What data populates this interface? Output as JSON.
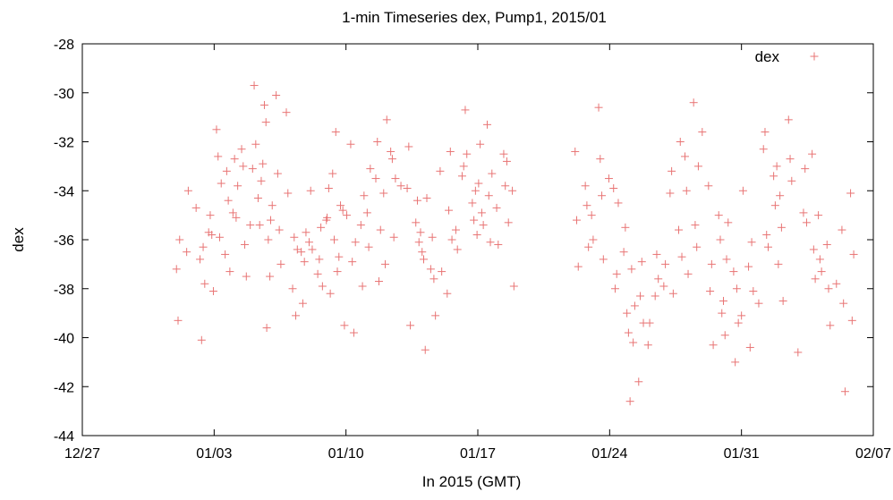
{
  "chart_data": {
    "type": "scatter",
    "title": "1-min Timeseries dex, Pump1, 2015/01",
    "xlabel": "In 2015 (GMT)",
    "ylabel": "dex",
    "xlim": [
      "2014-12-27",
      "2015-02-07"
    ],
    "ylim": [
      -44,
      -28
    ],
    "x_ticks": [
      "12/27",
      "01/03",
      "01/10",
      "01/17",
      "01/24",
      "01/31",
      "02/07"
    ],
    "y_ticks": [
      "-28",
      "-30",
      "-32",
      "-34",
      "-36",
      "-38",
      "-40",
      "-42",
      "-44"
    ],
    "grid": false,
    "legend": "top-right",
    "marker": "plus",
    "series": [
      {
        "name": "dex",
        "color": "#e87474",
        "points": [
          [
            "2015-01-01",
            -37.2
          ],
          [
            "2015-01-01",
            -36.5
          ],
          [
            "2015-01-01",
            -39.3
          ],
          [
            "2015-01-01",
            -34.0
          ],
          [
            "2015-01-01",
            -36.0
          ],
          [
            "2015-01-02",
            -35.7
          ],
          [
            "2015-01-02",
            -36.8
          ],
          [
            "2015-01-02",
            -35.0
          ],
          [
            "2015-01-02",
            -40.1
          ],
          [
            "2015-01-02",
            -35.8
          ],
          [
            "2015-01-02",
            -36.3
          ],
          [
            "2015-01-02",
            -38.1
          ],
          [
            "2015-01-02",
            -37.8
          ],
          [
            "2015-01-02",
            -34.7
          ],
          [
            "2015-01-03",
            -36.6
          ],
          [
            "2015-01-03",
            -31.5
          ],
          [
            "2015-01-03",
            -33.2
          ],
          [
            "2015-01-03",
            -32.6
          ],
          [
            "2015-01-03",
            -34.4
          ],
          [
            "2015-01-03",
            -35.9
          ],
          [
            "2015-01-03",
            -37.3
          ],
          [
            "2015-01-03",
            -33.7
          ],
          [
            "2015-01-04",
            -35.4
          ],
          [
            "2015-01-04",
            -32.3
          ],
          [
            "2015-01-04",
            -34.9
          ],
          [
            "2015-01-04",
            -33.0
          ],
          [
            "2015-01-04",
            -32.7
          ],
          [
            "2015-01-04",
            -36.2
          ],
          [
            "2015-01-04",
            -35.1
          ],
          [
            "2015-01-04",
            -37.5
          ],
          [
            "2015-01-04",
            -33.8
          ],
          [
            "2015-01-05",
            -39.6
          ],
          [
            "2015-01-05",
            -34.3
          ],
          [
            "2015-01-05",
            -36.0
          ],
          [
            "2015-01-05",
            -35.4
          ],
          [
            "2015-01-05",
            -37.5
          ],
          [
            "2015-01-05",
            -33.6
          ],
          [
            "2015-01-05",
            -33.1
          ],
          [
            "2015-01-05",
            -32.9
          ],
          [
            "2015-01-05",
            -29.7
          ],
          [
            "2015-01-05",
            -30.5
          ],
          [
            "2015-01-05",
            -32.1
          ],
          [
            "2015-01-05",
            -31.2
          ],
          [
            "2015-01-06",
            -30.1
          ],
          [
            "2015-01-06",
            -30.8
          ],
          [
            "2015-01-06",
            -33.3
          ],
          [
            "2015-01-06",
            -34.1
          ],
          [
            "2015-01-06",
            -35.6
          ],
          [
            "2015-01-06",
            -35.2
          ],
          [
            "2015-01-06",
            -37.0
          ],
          [
            "2015-01-06",
            -34.6
          ],
          [
            "2015-01-07",
            -36.5
          ],
          [
            "2015-01-07",
            -38.0
          ],
          [
            "2015-01-07",
            -38.6
          ],
          [
            "2015-01-07",
            -35.9
          ],
          [
            "2015-01-07",
            -36.9
          ],
          [
            "2015-01-07",
            -39.1
          ],
          [
            "2015-01-07",
            -35.7
          ],
          [
            "2015-01-07",
            -36.4
          ],
          [
            "2015-01-08",
            -35.2
          ],
          [
            "2015-01-08",
            -37.4
          ],
          [
            "2015-01-08",
            -36.1
          ],
          [
            "2015-01-08",
            -36.8
          ],
          [
            "2015-01-08",
            -34.0
          ],
          [
            "2015-01-08",
            -35.5
          ],
          [
            "2015-01-08",
            -36.4
          ],
          [
            "2015-01-08",
            -37.9
          ],
          [
            "2015-01-09",
            -33.3
          ],
          [
            "2015-01-09",
            -34.8
          ],
          [
            "2015-01-09",
            -36.0
          ],
          [
            "2015-01-09",
            -39.5
          ],
          [
            "2015-01-09",
            -31.6
          ],
          [
            "2015-01-09",
            -35.1
          ],
          [
            "2015-01-09",
            -37.3
          ],
          [
            "2015-01-09",
            -33.9
          ],
          [
            "2015-01-09",
            -36.7
          ],
          [
            "2015-01-09",
            -38.2
          ],
          [
            "2015-01-09",
            -34.6
          ],
          [
            "2015-01-10",
            -32.1
          ],
          [
            "2015-01-10",
            -35.4
          ],
          [
            "2015-01-10",
            -36.9
          ],
          [
            "2015-01-10",
            -37.9
          ],
          [
            "2015-01-10",
            -39.8
          ],
          [
            "2015-01-10",
            -34.2
          ],
          [
            "2015-01-10",
            -36.1
          ],
          [
            "2015-01-10",
            -35.0
          ],
          [
            "2015-01-11",
            -33.5
          ],
          [
            "2015-01-11",
            -34.9
          ],
          [
            "2015-01-11",
            -32.0
          ],
          [
            "2015-01-11",
            -36.3
          ],
          [
            "2015-01-11",
            -37.7
          ],
          [
            "2015-01-11",
            -33.1
          ],
          [
            "2015-01-11",
            -35.6
          ],
          [
            "2015-01-12",
            -32.4
          ],
          [
            "2015-01-12",
            -33.8
          ],
          [
            "2015-01-12",
            -32.7
          ],
          [
            "2015-01-12",
            -34.1
          ],
          [
            "2015-01-12",
            -35.9
          ],
          [
            "2015-01-12",
            -37.0
          ],
          [
            "2015-01-12",
            -33.5
          ],
          [
            "2015-01-12",
            -31.1
          ],
          [
            "2015-01-13",
            -35.3
          ],
          [
            "2015-01-13",
            -33.9
          ],
          [
            "2015-01-13",
            -34.4
          ],
          [
            "2015-01-13",
            -32.2
          ],
          [
            "2015-01-13",
            -36.1
          ],
          [
            "2015-01-13",
            -39.5
          ],
          [
            "2015-01-13",
            -35.7
          ],
          [
            "2015-01-14",
            -37.2
          ],
          [
            "2015-01-14",
            -36.5
          ],
          [
            "2015-01-14",
            -35.9
          ],
          [
            "2015-01-14",
            -36.8
          ],
          [
            "2015-01-14",
            -37.6
          ],
          [
            "2015-01-14",
            -40.5
          ],
          [
            "2015-01-14",
            -39.1
          ],
          [
            "2015-01-14",
            -34.3
          ],
          [
            "2015-01-15",
            -35.6
          ],
          [
            "2015-01-15",
            -38.2
          ],
          [
            "2015-01-15",
            -36.4
          ],
          [
            "2015-01-15",
            -34.8
          ],
          [
            "2015-01-15",
            -33.2
          ],
          [
            "2015-01-15",
            -32.4
          ],
          [
            "2015-01-15",
            -37.3
          ],
          [
            "2015-01-15",
            -36.0
          ],
          [
            "2015-01-16",
            -33.4
          ],
          [
            "2015-01-16",
            -34.5
          ],
          [
            "2015-01-16",
            -33.0
          ],
          [
            "2015-01-16",
            -35.2
          ],
          [
            "2015-01-16",
            -30.7
          ],
          [
            "2015-01-16",
            -34.0
          ],
          [
            "2015-01-16",
            -32.5
          ],
          [
            "2015-01-16",
            -35.8
          ],
          [
            "2015-01-17",
            -31.3
          ],
          [
            "2015-01-17",
            -33.7
          ],
          [
            "2015-01-17",
            -34.2
          ],
          [
            "2015-01-17",
            -32.1
          ],
          [
            "2015-01-17",
            -36.1
          ],
          [
            "2015-01-17",
            -34.9
          ],
          [
            "2015-01-17",
            -33.3
          ],
          [
            "2015-01-17",
            -35.4
          ],
          [
            "2015-01-18",
            -34.0
          ],
          [
            "2015-01-18",
            -32.5
          ],
          [
            "2015-01-18",
            -37.9
          ],
          [
            "2015-01-18",
            -33.8
          ],
          [
            "2015-01-18",
            -34.7
          ],
          [
            "2015-01-18",
            -32.8
          ],
          [
            "2015-01-18",
            -36.2
          ],
          [
            "2015-01-18",
            -35.3
          ],
          [
            "2015-01-22",
            -32.4
          ],
          [
            "2015-01-22",
            -33.8
          ],
          [
            "2015-01-22",
            -35.2
          ],
          [
            "2015-01-22",
            -34.6
          ],
          [
            "2015-01-22",
            -37.1
          ],
          [
            "2015-01-22",
            -36.3
          ],
          [
            "2015-01-23",
            -30.6
          ],
          [
            "2015-01-23",
            -33.5
          ],
          [
            "2015-01-23",
            -32.7
          ],
          [
            "2015-01-23",
            -35.0
          ],
          [
            "2015-01-23",
            -34.2
          ],
          [
            "2015-01-23",
            -36.0
          ],
          [
            "2015-01-23",
            -36.8
          ],
          [
            "2015-01-24",
            -33.9
          ],
          [
            "2015-01-24",
            -36.5
          ],
          [
            "2015-01-24",
            -38.0
          ],
          [
            "2015-01-24",
            -35.5
          ],
          [
            "2015-01-24",
            -37.4
          ],
          [
            "2015-01-24",
            -39.0
          ],
          [
            "2015-01-24",
            -34.5
          ],
          [
            "2015-01-25",
            -39.8
          ],
          [
            "2015-01-25",
            -41.8
          ],
          [
            "2015-01-25",
            -42.6
          ],
          [
            "2015-01-25",
            -38.3
          ],
          [
            "2015-01-25",
            -37.2
          ],
          [
            "2015-01-25",
            -36.9
          ],
          [
            "2015-01-25",
            -40.2
          ],
          [
            "2015-01-25",
            -39.4
          ],
          [
            "2015-01-25",
            -38.7
          ],
          [
            "2015-01-26",
            -37.9
          ],
          [
            "2015-01-26",
            -38.3
          ],
          [
            "2015-01-26",
            -37.0
          ],
          [
            "2015-01-26",
            -36.6
          ],
          [
            "2015-01-26",
            -40.3
          ],
          [
            "2015-01-26",
            -37.6
          ],
          [
            "2015-01-26",
            -39.4
          ],
          [
            "2015-01-27",
            -35.6
          ],
          [
            "2015-01-27",
            -34.1
          ],
          [
            "2015-01-27",
            -32.0
          ],
          [
            "2015-01-27",
            -33.2
          ],
          [
            "2015-01-27",
            -36.7
          ],
          [
            "2015-01-27",
            -38.2
          ],
          [
            "2015-01-28",
            -31.6
          ],
          [
            "2015-01-28",
            -30.4
          ],
          [
            "2015-01-28",
            -32.6
          ],
          [
            "2015-01-28",
            -35.4
          ],
          [
            "2015-01-28",
            -34.0
          ],
          [
            "2015-01-28",
            -36.3
          ],
          [
            "2015-01-28",
            -37.4
          ],
          [
            "2015-01-28",
            -33.0
          ],
          [
            "2015-01-29",
            -33.8
          ],
          [
            "2015-01-29",
            -35.0
          ],
          [
            "2015-01-29",
            -38.1
          ],
          [
            "2015-01-29",
            -36.0
          ],
          [
            "2015-01-29",
            -37.0
          ],
          [
            "2015-01-29",
            -39.0
          ],
          [
            "2015-01-29",
            -40.3
          ],
          [
            "2015-01-30",
            -38.5
          ],
          [
            "2015-01-30",
            -37.3
          ],
          [
            "2015-01-30",
            -39.9
          ],
          [
            "2015-01-30",
            -41.0
          ],
          [
            "2015-01-30",
            -36.8
          ],
          [
            "2015-01-30",
            -38.0
          ],
          [
            "2015-01-30",
            -35.3
          ],
          [
            "2015-01-30",
            -39.4
          ],
          [
            "2015-01-31",
            -37.1
          ],
          [
            "2015-01-31",
            -38.6
          ],
          [
            "2015-01-31",
            -40.4
          ],
          [
            "2015-01-31",
            -39.1
          ],
          [
            "2015-01-31",
            -36.1
          ],
          [
            "2015-01-31",
            -34.0
          ],
          [
            "2015-01-31",
            -38.1
          ],
          [
            "2015-02-01",
            -32.3
          ],
          [
            "2015-02-01",
            -33.4
          ],
          [
            "2015-02-01",
            -31.6
          ],
          [
            "2015-02-01",
            -34.6
          ],
          [
            "2015-02-01",
            -35.8
          ],
          [
            "2015-02-01",
            -33.0
          ],
          [
            "2015-02-01",
            -36.3
          ],
          [
            "2015-02-01",
            -37.0
          ],
          [
            "2015-02-02",
            -31.1
          ],
          [
            "2015-02-02",
            -34.2
          ],
          [
            "2015-02-02",
            -32.7
          ],
          [
            "2015-02-02",
            -35.5
          ],
          [
            "2015-02-02",
            -33.6
          ],
          [
            "2015-02-02",
            -38.5
          ],
          [
            "2015-02-03",
            -32.5
          ],
          [
            "2015-02-03",
            -34.9
          ],
          [
            "2015-02-03",
            -36.4
          ],
          [
            "2015-02-03",
            -33.1
          ],
          [
            "2015-02-03",
            -37.6
          ],
          [
            "2015-02-03",
            -35.3
          ],
          [
            "2015-02-03",
            -40.6
          ],
          [
            "2015-02-04",
            -36.2
          ],
          [
            "2015-02-04",
            -35.0
          ],
          [
            "2015-02-04",
            -38.0
          ],
          [
            "2015-02-04",
            -36.8
          ],
          [
            "2015-02-04",
            -39.5
          ],
          [
            "2015-02-04",
            -37.3
          ],
          [
            "2015-02-05",
            -34.1
          ],
          [
            "2015-02-05",
            -35.6
          ],
          [
            "2015-02-05",
            -39.3
          ],
          [
            "2015-02-05",
            -38.6
          ],
          [
            "2015-02-05",
            -36.6
          ],
          [
            "2015-02-05",
            -42.2
          ],
          [
            "2015-02-05",
            -37.8
          ]
        ]
      }
    ]
  }
}
